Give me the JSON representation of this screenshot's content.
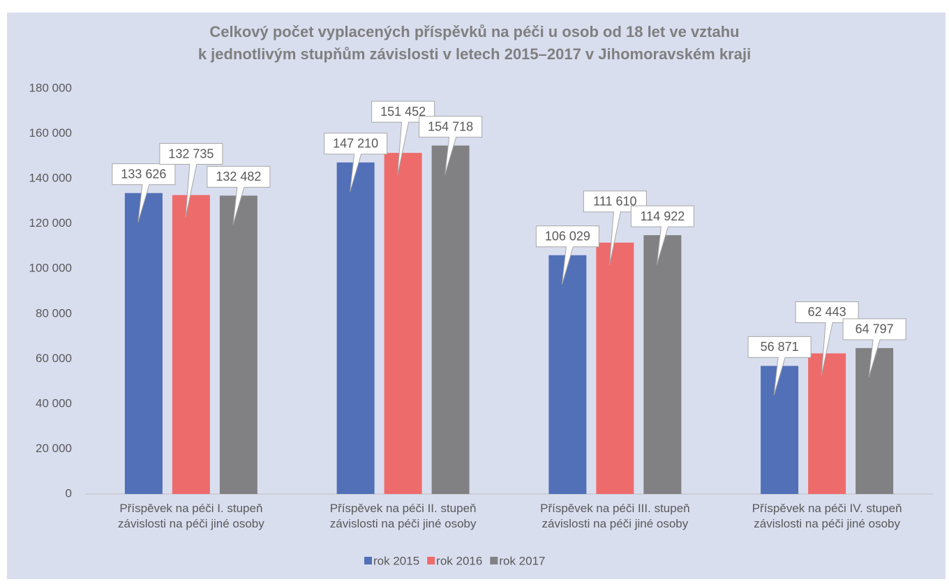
{
  "chart_data": {
    "type": "bar",
    "title": "Celkový počet vyplacených příspěvků na péči u osob od 18 let ve vztahu\nk jednotlivým stupňům závislosti v letech 2015–2017 v Jihomoravském kraji",
    "categories": [
      "Příspěvek na péči I. stupeň\nzávislosti na péči jiné osoby",
      "Příspěvek na péči II. stupeň\nzávislosti na péči jiné osoby",
      "Příspěvek na péči III. stupeň\nzávislosti na péči jiné osoby",
      "Příspěvek na péči IV. stupeň\nzávislosti na péči jiné osoby"
    ],
    "series": [
      {
        "name": "rok 2015",
        "color": "#5170b7",
        "values": [
          133626,
          147210,
          106029,
          56871
        ],
        "value_labels": [
          "133 626",
          "147 210",
          "106 029",
          "56 871"
        ]
      },
      {
        "name": "rok 2016",
        "color": "#ee6b6b",
        "values": [
          132735,
          151452,
          111610,
          62443
        ],
        "value_labels": [
          "132 735",
          "151 452",
          "111 610",
          "62 443"
        ]
      },
      {
        "name": "rok 2017",
        "color": "#818183",
        "values": [
          132482,
          154718,
          114922,
          64797
        ],
        "value_labels": [
          "132 482",
          "154 718",
          "114 922",
          "64 797"
        ]
      }
    ],
    "ylim": [
      0,
      180000
    ],
    "yticks": [
      0,
      {
        "value": 20000,
        "label": "20 000"
      },
      {
        "value": 40000,
        "label": "40 000"
      },
      {
        "value": 60000,
        "label": "60 000"
      },
      {
        "value": 80000,
        "label": "80 000"
      },
      {
        "value": 100000,
        "label": "100 000"
      },
      {
        "value": 120000,
        "label": "120 000"
      },
      {
        "value": 140000,
        "label": "140 000"
      },
      {
        "value": 160000,
        "label": "160 000"
      },
      {
        "value": 180000,
        "label": "180 000"
      }
    ],
    "grid": false,
    "legend": "bottom"
  }
}
